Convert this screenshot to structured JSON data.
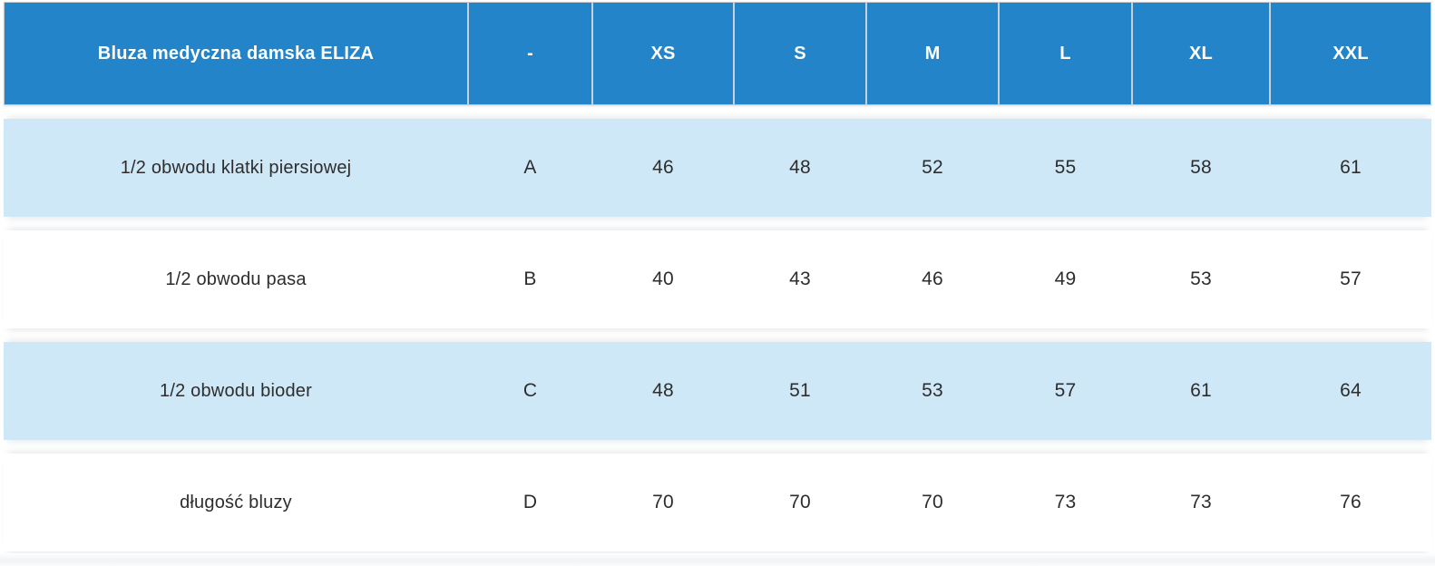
{
  "chart_data": {
    "type": "table",
    "title": "Bluza medyczna damska ELIZA",
    "columns": [
      "-",
      "XS",
      "S",
      "M",
      "L",
      "XL",
      "XXL"
    ],
    "rows": [
      {
        "label": "1/2 obwodu klatki piersiowej",
        "symbol": "A",
        "values": [
          46,
          48,
          52,
          55,
          58,
          61
        ]
      },
      {
        "label": "1/2 obwodu pasa",
        "symbol": "B",
        "values": [
          40,
          43,
          46,
          49,
          53,
          57
        ]
      },
      {
        "label": "1/2 obwodu bioder",
        "symbol": "C",
        "values": [
          48,
          51,
          53,
          57,
          61,
          64
        ]
      },
      {
        "label": "długość bluzy",
        "symbol": "D",
        "values": [
          70,
          70,
          70,
          73,
          73,
          76
        ]
      }
    ],
    "layout": {
      "striped_row_indices": [
        0,
        2
      ],
      "header_position": "top",
      "alignment": "center"
    }
  },
  "colors": {
    "header_bg": "#2484c9",
    "header_text": "#ffffff",
    "stripe_bg": "#cfe8f8",
    "alt_bg": "#ffffff",
    "cell_text": "#2d2d2d",
    "separator": "#c9d1d7"
  }
}
